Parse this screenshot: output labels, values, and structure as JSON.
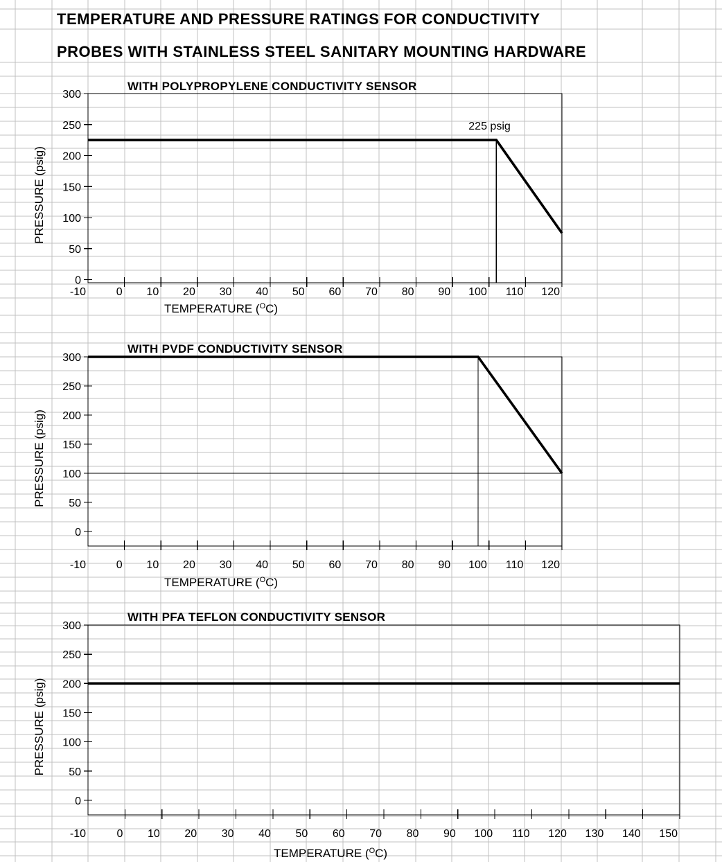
{
  "page": {
    "title_line1": "TEMPERATURE AND PRESSURE RATINGS FOR CONDUCTIVITY",
    "title_line2": "PROBES WITH STAINLESS STEEL SANITARY MOUNTING HARDWARE"
  },
  "colors": {
    "grid": "#c0c0c0",
    "ink": "#000000",
    "background": "#ffffff"
  },
  "chart_data": [
    {
      "type": "line",
      "title": "WITH POLYPROPYLENE CONDUCTIVITY SENSOR",
      "xlabel": "TEMPERATURE (°C)",
      "ylabel": "PRESSURE (psig)",
      "xlim": [
        -10,
        120
      ],
      "ylim": [
        -5,
        300
      ],
      "x_ticks": [
        -10,
        0,
        10,
        20,
        30,
        40,
        50,
        60,
        70,
        80,
        90,
        100,
        110,
        120
      ],
      "y_ticks": [
        0,
        50,
        100,
        150,
        200,
        250,
        300
      ],
      "series": [
        {
          "x": [
            -10,
            102,
            120
          ],
          "y": [
            225,
            225,
            75
          ]
        }
      ],
      "reference_lines": [
        {
          "x": 102,
          "y_from": -5,
          "y_to": 225
        }
      ],
      "annotations": [
        {
          "text": "225 psig",
          "x": 102,
          "y": 225
        }
      ],
      "grid": true
    },
    {
      "type": "line",
      "title": "WITH PVDF CONDUCTIVITY SENSOR",
      "xlabel": "TEMPERATURE (°C)",
      "ylabel": "PRESSURE (psig)",
      "xlim": [
        -10,
        120
      ],
      "ylim": [
        -25,
        300
      ],
      "x_ticks": [
        -10,
        0,
        10,
        20,
        30,
        40,
        50,
        60,
        70,
        80,
        90,
        100,
        110,
        120
      ],
      "y_ticks": [
        0,
        50,
        100,
        150,
        200,
        250,
        300
      ],
      "series": [
        {
          "x": [
            -10,
            97,
            120
          ],
          "y": [
            300,
            300,
            100
          ]
        }
      ],
      "reference_lines": [
        {
          "x": 97,
          "y_from": -25,
          "y_to": 300
        },
        {
          "y": 100,
          "x_from": -10,
          "x_to": 120
        }
      ],
      "annotations": [],
      "grid": true
    },
    {
      "type": "line",
      "title": "WITH PFA TEFLON CONDUCTIVITY SENSOR",
      "xlabel": "TEMPERATURE (°C)",
      "ylabel": "PRESSURE (psig)",
      "xlim": [
        -10,
        150
      ],
      "ylim": [
        -25,
        300
      ],
      "x_ticks": [
        -10,
        0,
        10,
        20,
        30,
        40,
        50,
        60,
        70,
        80,
        90,
        100,
        110,
        120,
        130,
        140,
        150
      ],
      "y_ticks": [
        0,
        50,
        100,
        150,
        200,
        250,
        300
      ],
      "series": [
        {
          "x": [
            -10,
            150
          ],
          "y": [
            200,
            200
          ]
        }
      ],
      "reference_lines": [],
      "annotations": [],
      "grid": true
    }
  ]
}
